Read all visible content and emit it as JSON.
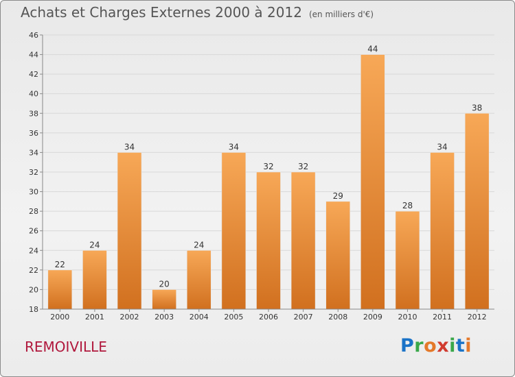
{
  "header": {
    "title": "Achats et Charges Externes 2000 à 2012",
    "unit": "(en milliers d'€)"
  },
  "place_name": "REMOIVILLE",
  "logo": {
    "letters": [
      "P",
      "r",
      "o",
      "x",
      "i",
      "t",
      "i"
    ]
  },
  "colors": {
    "bar_light": "#f7a857",
    "bar_dark": "#d1701f",
    "grid": "#d8d8d8",
    "axis": "#888888"
  },
  "chart_data": {
    "type": "bar",
    "title": "Achats et Charges Externes 2000 à 2012",
    "subtitle": "(en milliers d'€)",
    "categories": [
      "2000",
      "2001",
      "2002",
      "2003",
      "2004",
      "2005",
      "2006",
      "2007",
      "2008",
      "2009",
      "2010",
      "2011",
      "2012"
    ],
    "values": [
      22,
      24,
      34,
      20,
      24,
      34,
      32,
      32,
      29,
      44,
      28,
      34,
      38
    ],
    "ylim": [
      18,
      46
    ],
    "yticks": [
      18,
      20,
      22,
      24,
      26,
      28,
      30,
      32,
      34,
      36,
      38,
      40,
      42,
      44,
      46
    ],
    "grid": true,
    "legend": "none"
  }
}
